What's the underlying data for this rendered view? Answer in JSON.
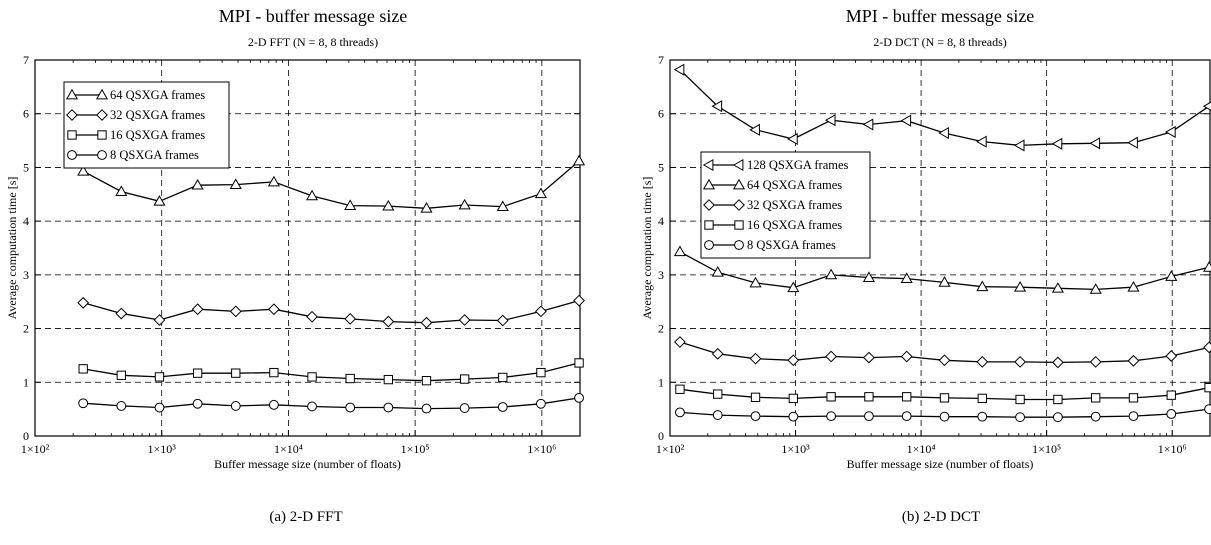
{
  "chart_data": [
    {
      "type": "line",
      "title": "MPI - buffer message size",
      "subtitle": "2-D FFT (N = 8, 8 threads)",
      "xlabel": "Buffer message size (number of floats)",
      "ylabel": "Average computation time [s]",
      "xscale": "log",
      "xlim": [
        100,
        2000000
      ],
      "ylim": [
        0,
        7
      ],
      "xticks": [
        100,
        1000,
        10000,
        100000,
        1000000
      ],
      "xtick_labels": [
        "1×10²",
        "1×10³",
        "1×10⁴",
        "1×10⁵",
        "1×10⁶"
      ],
      "yticks": [
        0,
        1,
        2,
        3,
        4,
        5,
        6,
        7
      ],
      "grid": true,
      "legend_position": "top-left",
      "x": [
        240,
        480,
        960,
        1920,
        3840,
        7680,
        15360,
        30720,
        61440,
        122880,
        245760,
        491520,
        983040,
        1966080
      ],
      "series": [
        {
          "name": "64 QSXGA frames",
          "marker": "triangle-up",
          "values": [
            4.93,
            4.55,
            4.37,
            4.67,
            4.68,
            4.73,
            4.47,
            4.29,
            4.28,
            4.24,
            4.3,
            4.27,
            4.51,
            5.12
          ]
        },
        {
          "name": "32 QSXGA frames",
          "marker": "diamond",
          "values": [
            2.48,
            2.28,
            2.16,
            2.36,
            2.32,
            2.36,
            2.22,
            2.18,
            2.13,
            2.11,
            2.16,
            2.15,
            2.32,
            2.52
          ]
        },
        {
          "name": "16 QSXGA frames",
          "marker": "square",
          "values": [
            1.25,
            1.13,
            1.1,
            1.17,
            1.17,
            1.18,
            1.1,
            1.07,
            1.05,
            1.03,
            1.06,
            1.09,
            1.18,
            1.36
          ]
        },
        {
          "name": "8 QSXGA frames",
          "marker": "circle",
          "values": [
            0.61,
            0.56,
            0.53,
            0.6,
            0.56,
            0.58,
            0.55,
            0.53,
            0.53,
            0.51,
            0.52,
            0.54,
            0.6,
            0.71
          ]
        }
      ],
      "caption": "(a) 2-D FFT"
    },
    {
      "type": "line",
      "title": "MPI - buffer message size",
      "subtitle": "2-D DCT (N = 8, 8 threads)",
      "xlabel": "Buffer message size (number of floats)",
      "ylabel": "Average computation time [s]",
      "xscale": "log",
      "xlim": [
        100,
        2000000
      ],
      "ylim": [
        0,
        7
      ],
      "xticks": [
        100,
        1000,
        10000,
        100000,
        1000000
      ],
      "xtick_labels": [
        "1×10²",
        "1×10³",
        "1×10⁴",
        "1×10⁵",
        "1×10⁶"
      ],
      "yticks": [
        0,
        1,
        2,
        3,
        4,
        5,
        6,
        7
      ],
      "grid": true,
      "legend_position": "middle-left",
      "x": [
        120,
        240,
        480,
        960,
        1920,
        3840,
        7680,
        15360,
        30720,
        61440,
        122880,
        245760,
        491520,
        983040,
        1966080
      ],
      "series": [
        {
          "name": "128 QSXGA frames",
          "marker": "triangle-left",
          "values": [
            6.82,
            6.14,
            5.7,
            5.53,
            5.88,
            5.8,
            5.87,
            5.64,
            5.48,
            5.41,
            5.44,
            5.45,
            5.46,
            5.66,
            6.14
          ]
        },
        {
          "name": "64 QSXGA frames",
          "marker": "triangle-up",
          "values": [
            3.43,
            3.05,
            2.85,
            2.76,
            3.0,
            2.95,
            2.93,
            2.86,
            2.78,
            2.77,
            2.75,
            2.73,
            2.77,
            2.97,
            3.14
          ]
        },
        {
          "name": "32 QSXGA frames",
          "marker": "diamond",
          "values": [
            1.75,
            1.53,
            1.44,
            1.41,
            1.48,
            1.46,
            1.48,
            1.41,
            1.38,
            1.38,
            1.37,
            1.38,
            1.4,
            1.49,
            1.65
          ]
        },
        {
          "name": "16 QSXGA frames",
          "marker": "square",
          "values": [
            0.87,
            0.78,
            0.72,
            0.7,
            0.73,
            0.73,
            0.73,
            0.71,
            0.7,
            0.68,
            0.68,
            0.71,
            0.71,
            0.76,
            0.9
          ]
        },
        {
          "name": "8 QSXGA frames",
          "marker": "circle",
          "values": [
            0.44,
            0.39,
            0.37,
            0.36,
            0.37,
            0.37,
            0.37,
            0.36,
            0.36,
            0.35,
            0.35,
            0.36,
            0.37,
            0.41,
            0.5
          ]
        }
      ],
      "caption": "(b) 2-D DCT"
    }
  ]
}
